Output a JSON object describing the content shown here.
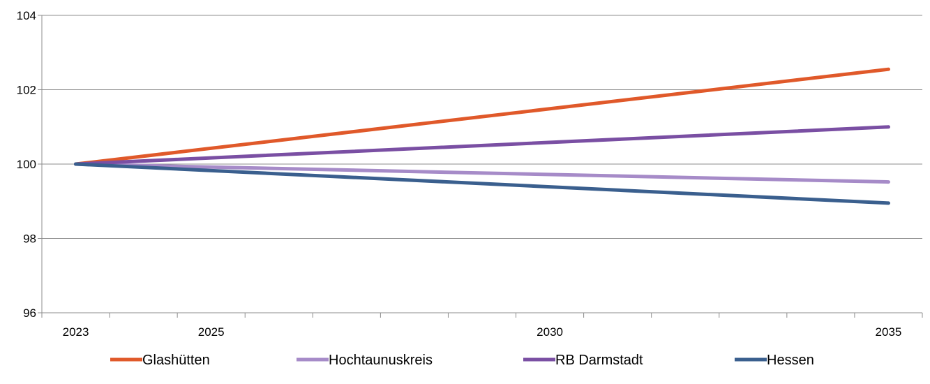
{
  "chart_data": {
    "type": "line",
    "title": "",
    "xlabel": "",
    "ylabel": "",
    "x": [
      2023,
      2035
    ],
    "x_ticks": [
      2023,
      2025,
      2030,
      2035
    ],
    "x_tick_labels": [
      "2023",
      "2025",
      "2030",
      "2035"
    ],
    "xlim": [
      2023,
      2035
    ],
    "ylim": [
      96,
      104
    ],
    "y_ticks": [
      96,
      98,
      100,
      102,
      104
    ],
    "y_tick_labels": [
      "96",
      "98",
      "100",
      "102",
      "104"
    ],
    "grid": "horizontal",
    "legend_position": "bottom",
    "series": [
      {
        "name": "Glashütten",
        "color": "#E0592A",
        "values": [
          100,
          102.55
        ]
      },
      {
        "name": "Hochtaunuskreis",
        "color": "#A68BC8",
        "values": [
          100,
          99.52
        ]
      },
      {
        "name": "RB Darmstadt",
        "color": "#7A4FA3",
        "values": [
          100,
          101.0
        ]
      },
      {
        "name": "Hessen",
        "color": "#3A5F8E",
        "values": [
          100,
          98.95
        ]
      }
    ]
  }
}
